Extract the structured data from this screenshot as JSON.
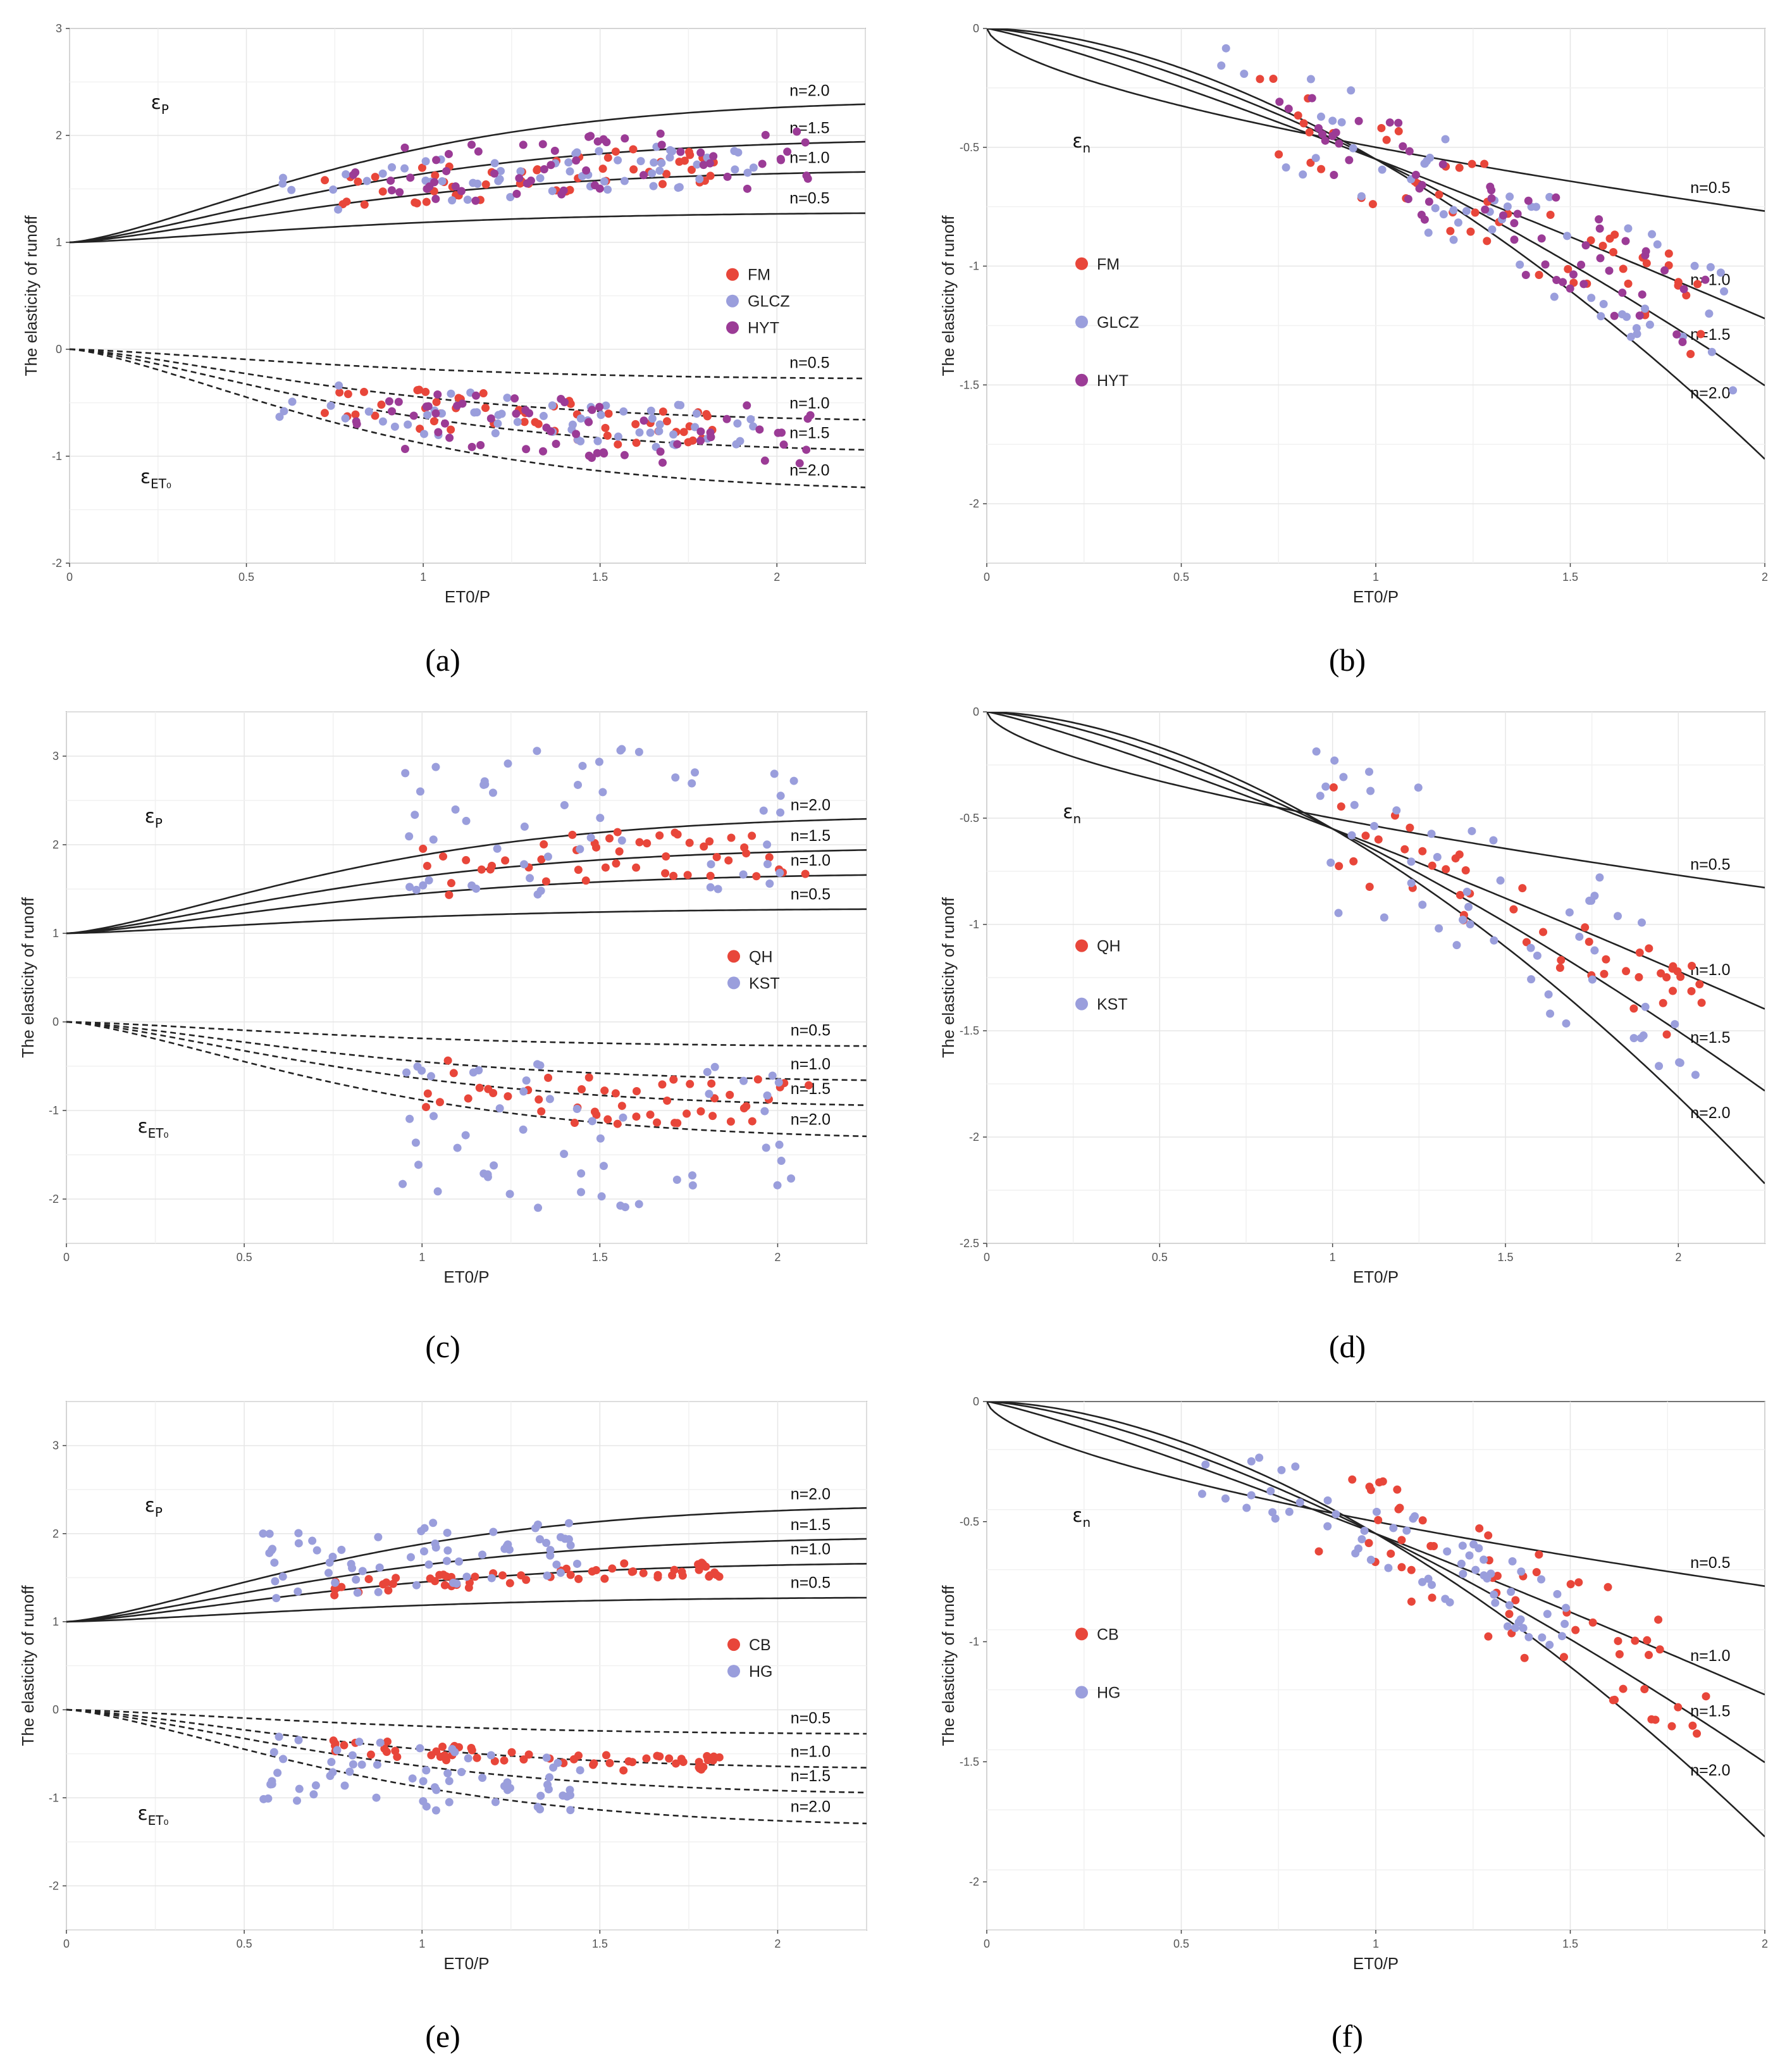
{
  "chart_data": [
    {
      "id": "a",
      "type": "scatter",
      "caption": "(a)",
      "xlabel": "ET0/P",
      "ylabel": "The elasticity of runoff",
      "xlim": [
        0,
        2.25
      ],
      "ylim": [
        -2,
        3
      ],
      "xticks": [
        0,
        0.5,
        1,
        1.5,
        2
      ],
      "xtick_labels": [
        "0",
        "0.5",
        "1",
        "1.5",
        "2"
      ],
      "yticks": [
        -2,
        -1,
        0,
        1,
        2,
        3
      ],
      "ytick_labels": [
        "-2",
        "-1",
        "0",
        "1",
        "2",
        "3"
      ],
      "symbols": [
        {
          "text": "ε",
          "sub": "P",
          "x": 0.23,
          "y": 2.25
        },
        {
          "text": "ε",
          "sub": "ET₀",
          "x": 0.2,
          "y": -1.25
        }
      ],
      "curves": [
        {
          "kind": "eps_p",
          "n": 0.5,
          "dashed": false,
          "label": "n=0.5"
        },
        {
          "kind": "eps_p",
          "n": 1.0,
          "dashed": false,
          "label": "n=1.0"
        },
        {
          "kind": "eps_p",
          "n": 1.5,
          "dashed": false,
          "label": "n=1.5"
        },
        {
          "kind": "eps_p",
          "n": 2.0,
          "dashed": false,
          "label": "n=2.0"
        },
        {
          "kind": "eps_et0",
          "n": 0.5,
          "dashed": true,
          "label": "n=0.5"
        },
        {
          "kind": "eps_et0",
          "n": 1.0,
          "dashed": true,
          "label": "n=1.0"
        },
        {
          "kind": "eps_et0",
          "n": 1.5,
          "dashed": true,
          "label": "n=1.5"
        },
        {
          "kind": "eps_et0",
          "n": 2.0,
          "dashed": true,
          "label": "n=2.0"
        }
      ],
      "series": [
        {
          "name": "FM",
          "color": "#E8463A",
          "region": [
            0.72,
            1.85
          ],
          "center": 1.18,
          "spread": 0.18,
          "n": 55
        },
        {
          "name": "GLCZ",
          "color": "#9A9EDC",
          "region": [
            0.6,
            1.95
          ],
          "center": 1.1,
          "spread": 0.2,
          "n": 60
        },
        {
          "name": "HYT",
          "color": "#9B3B96",
          "region": [
            0.8,
            2.1
          ],
          "center": 1.25,
          "spread": 0.25,
          "n": 60
        }
      ],
      "legend": {
        "position": "center-right",
        "items": [
          "FM",
          "GLCZ",
          "HYT"
        ]
      }
    },
    {
      "id": "b",
      "type": "scatter",
      "caption": "(b)",
      "xlabel": "ET0/P",
      "ylabel": "The elasticity of runoff",
      "xlim": [
        0,
        2.0
      ],
      "ylim": [
        -2.25,
        0
      ],
      "xticks": [
        0,
        0.5,
        1,
        1.5,
        2
      ],
      "xtick_labels": [
        "0",
        "0.5",
        "1",
        "1.5",
        "2"
      ],
      "yticks": [
        -2,
        -1.5,
        -1,
        -0.5,
        0
      ],
      "ytick_labels": [
        "-2",
        "-1.5",
        "-1",
        "-0.5",
        "0"
      ],
      "symbols": [
        {
          "text": "ε",
          "sub": "n",
          "x": 0.22,
          "y": -0.5
        }
      ],
      "curves": [
        {
          "kind": "eps_n",
          "n": 0.5,
          "label": "n=0.5"
        },
        {
          "kind": "eps_n",
          "n": 1.0,
          "label": "n=1.0"
        },
        {
          "kind": "eps_n",
          "n": 1.5,
          "label": "n=1.5"
        },
        {
          "kind": "eps_n",
          "n": 2.0,
          "label": "n=2.0"
        }
      ],
      "series": [
        {
          "name": "FM",
          "color": "#E8463A",
          "region": [
            0.7,
            1.85
          ],
          "center": 1.15,
          "spread": 0.2,
          "n": 55
        },
        {
          "name": "GLCZ",
          "color": "#9A9EDC",
          "region": [
            0.6,
            1.95
          ],
          "center": 1.05,
          "spread": 0.25,
          "n": 60
        },
        {
          "name": "HYT",
          "color": "#9B3B96",
          "region": [
            0.75,
            1.85
          ],
          "center": 1.2,
          "spread": 0.2,
          "n": 60
        }
      ],
      "legend": {
        "position": "center-left",
        "items": [
          "FM",
          "GLCZ",
          "HYT"
        ]
      }
    },
    {
      "id": "c",
      "type": "scatter",
      "caption": "(c)",
      "xlabel": "ET0/P",
      "ylabel": "The elasticity of runoff",
      "xlim": [
        0,
        2.25
      ],
      "ylim": [
        -2.5,
        3.5
      ],
      "xticks": [
        0,
        0.5,
        1,
        1.5,
        2
      ],
      "xtick_labels": [
        "0",
        "0.5",
        "1",
        "1.5",
        "2"
      ],
      "yticks": [
        -2,
        -1,
        0,
        1,
        2,
        3
      ],
      "ytick_labels": [
        "-2",
        "-1",
        "0",
        "1",
        "2",
        "3"
      ],
      "symbols": [
        {
          "text": "ε",
          "sub": "P",
          "x": 0.22,
          "y": 2.25
        },
        {
          "text": "ε",
          "sub": "ET₀",
          "x": 0.2,
          "y": -1.25
        }
      ],
      "curves": [
        {
          "kind": "eps_p",
          "n": 0.5,
          "dashed": false,
          "label": "n=0.5"
        },
        {
          "kind": "eps_p",
          "n": 1.0,
          "dashed": false,
          "label": "n=1.0"
        },
        {
          "kind": "eps_p",
          "n": 1.5,
          "dashed": false,
          "label": "n=1.5"
        },
        {
          "kind": "eps_p",
          "n": 2.0,
          "dashed": false,
          "label": "n=2.0"
        },
        {
          "kind": "eps_et0",
          "n": 0.5,
          "dashed": true,
          "label": "n=0.5"
        },
        {
          "kind": "eps_et0",
          "n": 1.0,
          "dashed": true,
          "label": "n=1.0"
        },
        {
          "kind": "eps_et0",
          "n": 1.5,
          "dashed": true,
          "label": "n=1.5"
        },
        {
          "kind": "eps_et0",
          "n": 2.0,
          "dashed": true,
          "label": "n=2.0"
        }
      ],
      "series": [
        {
          "name": "QH",
          "color": "#E8463A",
          "region": [
            1.0,
            2.1
          ],
          "center": 1.5,
          "spread": 0.3,
          "n": 50
        },
        {
          "name": "KST",
          "color": "#9A9EDC",
          "region": [
            0.95,
            2.05
          ],
          "center": 1.4,
          "spread": 0.8,
          "n": 55
        }
      ],
      "legend": {
        "position": "center-right",
        "items": [
          "QH",
          "KST"
        ]
      }
    },
    {
      "id": "d",
      "type": "scatter",
      "caption": "(d)",
      "xlabel": "ET0/P",
      "ylabel": "The elasticity of runoff",
      "xlim": [
        0,
        2.25
      ],
      "ylim": [
        -2.5,
        0
      ],
      "xticks": [
        0,
        0.5,
        1,
        1.5,
        2
      ],
      "xtick_labels": [
        "0",
        "0.5",
        "1",
        "1.5",
        "2"
      ],
      "yticks": [
        -2.5,
        -2,
        -1.5,
        -1,
        -0.5,
        0
      ],
      "ytick_labels": [
        "-2.5",
        "-2",
        "-1.5",
        "-1",
        "-0.5",
        "0"
      ],
      "symbols": [
        {
          "text": "ε",
          "sub": "n",
          "x": 0.22,
          "y": -0.5
        }
      ],
      "curves": [
        {
          "kind": "eps_n",
          "n": 0.5,
          "label": "n=0.5"
        },
        {
          "kind": "eps_n",
          "n": 1.0,
          "label": "n=1.0"
        },
        {
          "kind": "eps_n",
          "n": 1.5,
          "label": "n=1.5"
        },
        {
          "kind": "eps_n",
          "n": 2.0,
          "label": "n=2.0"
        }
      ],
      "series": [
        {
          "name": "QH",
          "color": "#E8463A",
          "region": [
            1.0,
            2.1
          ],
          "center": 1.5,
          "spread": 0.2,
          "n": 50
        },
        {
          "name": "KST",
          "color": "#9A9EDC",
          "region": [
            0.95,
            2.05
          ],
          "center": 1.4,
          "spread": 0.4,
          "n": 55
        }
      ],
      "legend": {
        "position": "center-left",
        "items": [
          "QH",
          "KST"
        ]
      }
    },
    {
      "id": "e",
      "type": "scatter",
      "caption": "(e)",
      "xlabel": "ET0/P",
      "ylabel": "The elasticity of runoff",
      "xlim": [
        0,
        2.25
      ],
      "ylim": [
        -2.5,
        3.5
      ],
      "xticks": [
        0,
        0.5,
        1,
        1.5,
        2
      ],
      "xtick_labels": [
        "0",
        "0.5",
        "1",
        "1.5",
        "2"
      ],
      "yticks": [
        -2,
        -1,
        0,
        1,
        2,
        3
      ],
      "ytick_labels": [
        "-2",
        "-1",
        "0",
        "1",
        "2",
        "3"
      ],
      "symbols": [
        {
          "text": "ε",
          "sub": "P",
          "x": 0.22,
          "y": 2.25
        },
        {
          "text": "ε",
          "sub": "ET₀",
          "x": 0.2,
          "y": -1.25
        }
      ],
      "curves": [
        {
          "kind": "eps_p",
          "n": 0.5,
          "dashed": false,
          "label": "n=0.5"
        },
        {
          "kind": "eps_p",
          "n": 1.0,
          "dashed": false,
          "label": "n=1.0"
        },
        {
          "kind": "eps_p",
          "n": 1.5,
          "dashed": false,
          "label": "n=1.5"
        },
        {
          "kind": "eps_p",
          "n": 2.0,
          "dashed": false,
          "label": "n=2.0"
        },
        {
          "kind": "eps_et0",
          "n": 0.5,
          "dashed": true,
          "label": "n=0.5"
        },
        {
          "kind": "eps_et0",
          "n": 1.0,
          "dashed": true,
          "label": "n=1.0"
        },
        {
          "kind": "eps_et0",
          "n": 1.5,
          "dashed": true,
          "label": "n=1.5"
        },
        {
          "kind": "eps_et0",
          "n": 2.0,
          "dashed": true,
          "label": "n=2.0"
        }
      ],
      "series": [
        {
          "name": "CB",
          "color": "#E8463A",
          "region": [
            0.75,
            1.85
          ],
          "center": 1.2,
          "spread": 0.08,
          "n": 60
        },
        {
          "name": "HG",
          "color": "#9A9EDC",
          "region": [
            0.55,
            1.45
          ],
          "center": 1.5,
          "spread": 0.35,
          "n": 65
        }
      ],
      "legend": {
        "position": "center-right",
        "items": [
          "CB",
          "HG"
        ]
      }
    },
    {
      "id": "f",
      "type": "scatter",
      "caption": "(f)",
      "xlabel": "ET0/P",
      "ylabel": "The elasticity of runoff",
      "xlim": [
        0,
        2.0
      ],
      "ylim": [
        -2.2,
        0
      ],
      "xticks": [
        0,
        0.5,
        1,
        1.5,
        2
      ],
      "xtick_labels": [
        "0",
        "0.5",
        "1",
        "1.5",
        "2"
      ],
      "yticks": [
        -2,
        -1.5,
        -1,
        -0.5,
        0
      ],
      "ytick_labels": [
        "-2",
        "-1.5",
        "-1",
        "-0.5",
        "0"
      ],
      "symbols": [
        {
          "text": "ε",
          "sub": "n",
          "x": 0.22,
          "y": -0.5
        }
      ],
      "curves": [
        {
          "kind": "eps_n",
          "n": 0.5,
          "label": "n=0.5"
        },
        {
          "kind": "eps_n",
          "n": 1.0,
          "label": "n=1.0"
        },
        {
          "kind": "eps_n",
          "n": 1.5,
          "label": "n=1.5"
        },
        {
          "kind": "eps_n",
          "n": 2.0,
          "label": "n=2.0"
        }
      ],
      "series": [
        {
          "name": "CB",
          "color": "#E8463A",
          "region": [
            0.85,
            1.85
          ],
          "center": 1.2,
          "spread": 0.25,
          "n": 60
        },
        {
          "name": "HG",
          "color": "#9A9EDC",
          "region": [
            0.55,
            1.5
          ],
          "center": 0.9,
          "spread": 0.15,
          "n": 65
        }
      ],
      "legend": {
        "position": "center-left",
        "items": [
          "CB",
          "HG"
        ]
      }
    }
  ]
}
